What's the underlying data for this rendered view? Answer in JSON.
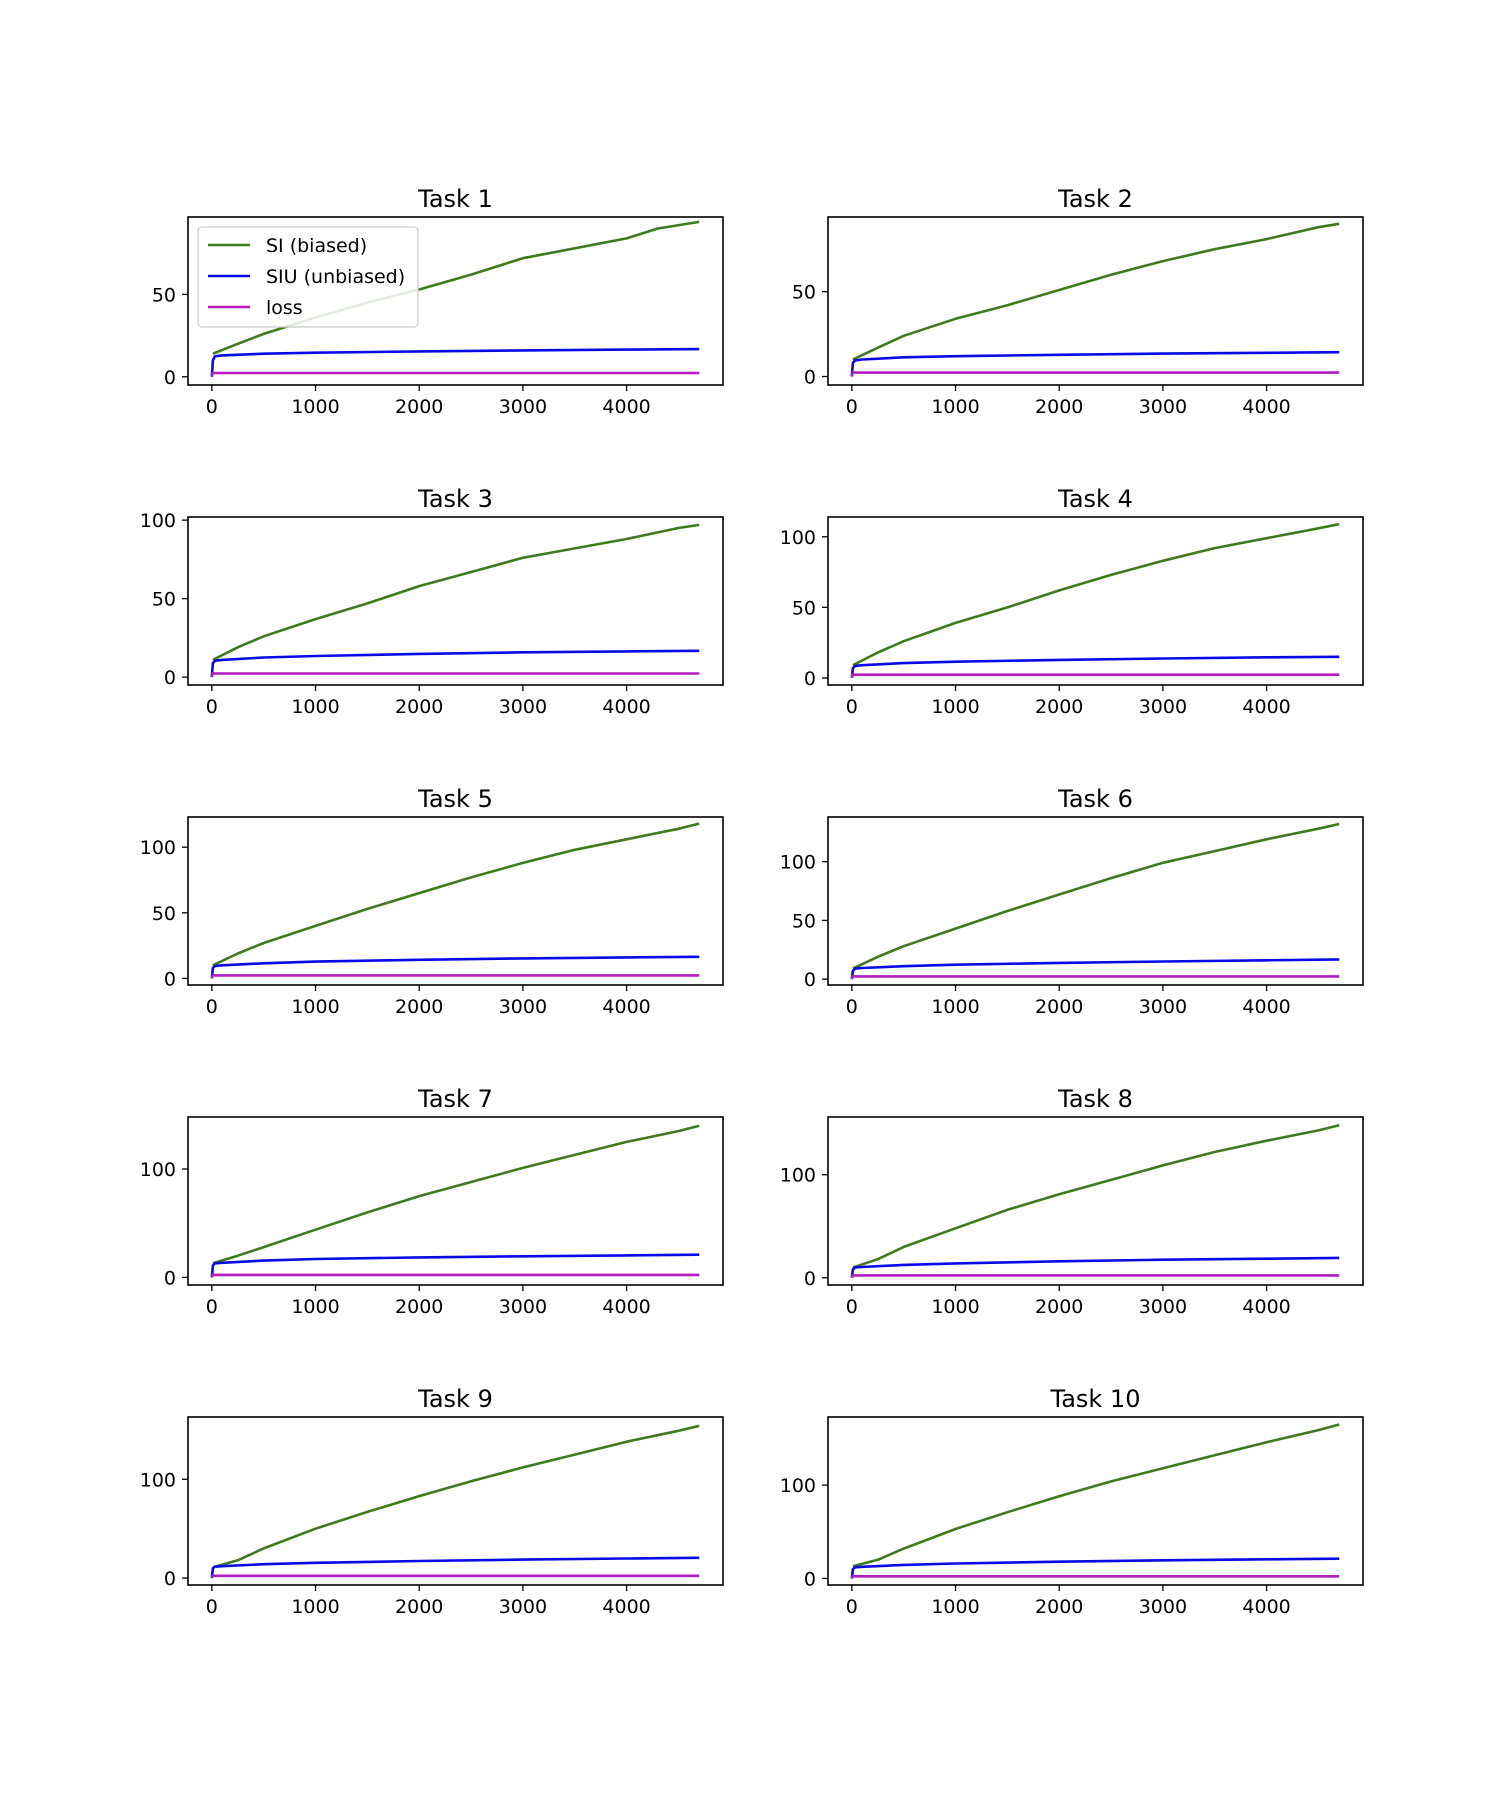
{
  "colors": {
    "si_biased": "#3e7a1e",
    "siu_unbiased": "#0a0ae6",
    "loss": "#b21bbd",
    "axes": "#000000",
    "legend_border": "#cccccc"
  },
  "chart_data": [
    {
      "type": "line",
      "title": "Task 1",
      "xlim": [
        -230,
        4930
      ],
      "ylim": [
        -5,
        97
      ],
      "xticks": [
        0,
        1000,
        2000,
        3000,
        4000
      ],
      "xtick_labels": [
        "0",
        "1000",
        "2000",
        "3000",
        "4000"
      ],
      "yticks": [
        0,
        50
      ],
      "ytick_labels": [
        "0",
        "50"
      ],
      "legend": {
        "position": "upper-left",
        "entries": [
          "SI (biased)",
          "SIU (unbiased)",
          "loss"
        ]
      },
      "series": [
        {
          "name": "SI (biased)",
          "color_key": "si_biased",
          "x": [
            10,
            250,
            500,
            1000,
            1500,
            2000,
            2500,
            3000,
            3500,
            4000,
            4300,
            4700
          ],
          "y": [
            14,
            20,
            26,
            36,
            45,
            53,
            62,
            72,
            78,
            84,
            90,
            94
          ]
        },
        {
          "name": "SIU (unbiased)",
          "color_key": "siu_unbiased",
          "x": [
            0,
            10,
            30,
            100,
            500,
            1000,
            2000,
            3000,
            4000,
            4700
          ],
          "y": [
            0,
            10,
            12.5,
            13,
            14,
            14.6,
            15.4,
            16,
            16.5,
            16.8
          ]
        },
        {
          "name": "loss",
          "color_key": "loss",
          "x": [
            0,
            8,
            30,
            4700
          ],
          "y": [
            0,
            2.5,
            2.3,
            2.3
          ]
        }
      ]
    },
    {
      "type": "line",
      "title": "Task 2",
      "xlim": [
        -230,
        4930
      ],
      "ylim": [
        -5,
        94
      ],
      "xticks": [
        0,
        1000,
        2000,
        3000,
        4000
      ],
      "xtick_labels": [
        "0",
        "1000",
        "2000",
        "3000",
        "4000"
      ],
      "yticks": [
        0,
        50
      ],
      "ytick_labels": [
        "0",
        "50"
      ],
      "series": [
        {
          "name": "SI (biased)",
          "color_key": "si_biased",
          "x": [
            10,
            250,
            500,
            1000,
            1500,
            2000,
            2500,
            3000,
            3500,
            4000,
            4500,
            4700
          ],
          "y": [
            10,
            17,
            24,
            34,
            42,
            51,
            60,
            68,
            75,
            81,
            88,
            90
          ]
        },
        {
          "name": "SIU (unbiased)",
          "color_key": "siu_unbiased",
          "x": [
            0,
            10,
            30,
            100,
            500,
            1000,
            2000,
            3000,
            4000,
            4700
          ],
          "y": [
            0,
            8,
            9.5,
            10,
            11.3,
            12,
            12.8,
            13.5,
            14,
            14.3
          ]
        },
        {
          "name": "loss",
          "color_key": "loss",
          "x": [
            0,
            8,
            30,
            4700
          ],
          "y": [
            0,
            2.5,
            2.3,
            2.3
          ]
        }
      ]
    },
    {
      "type": "line",
      "title": "Task 3",
      "xlim": [
        -230,
        4930
      ],
      "ylim": [
        -5,
        102
      ],
      "xticks": [
        0,
        1000,
        2000,
        3000,
        4000
      ],
      "xtick_labels": [
        "0",
        "1000",
        "2000",
        "3000",
        "4000"
      ],
      "yticks": [
        0,
        50,
        100
      ],
      "ytick_labels": [
        "0",
        "50",
        "100"
      ],
      "series": [
        {
          "name": "SI (biased)",
          "color_key": "si_biased",
          "x": [
            10,
            250,
            500,
            1000,
            1500,
            2000,
            2500,
            3000,
            3500,
            4000,
            4500,
            4700
          ],
          "y": [
            11,
            19,
            26,
            37,
            47,
            58,
            67,
            76,
            82,
            88,
            95,
            97
          ]
        },
        {
          "name": "SIU (unbiased)",
          "color_key": "siu_unbiased",
          "x": [
            0,
            10,
            30,
            100,
            500,
            1000,
            2000,
            3000,
            4000,
            4700
          ],
          "y": [
            0,
            9,
            10.5,
            11,
            12.5,
            13.5,
            14.8,
            15.8,
            16.4,
            16.8
          ]
        },
        {
          "name": "loss",
          "color_key": "loss",
          "x": [
            0,
            8,
            30,
            4700
          ],
          "y": [
            0,
            2.5,
            2.3,
            2.3
          ]
        }
      ]
    },
    {
      "type": "line",
      "title": "Task 4",
      "xlim": [
        -230,
        4930
      ],
      "ylim": [
        -5,
        114
      ],
      "xticks": [
        0,
        1000,
        2000,
        3000,
        4000
      ],
      "xtick_labels": [
        "0",
        "1000",
        "2000",
        "3000",
        "4000"
      ],
      "yticks": [
        0,
        50,
        100
      ],
      "ytick_labels": [
        "0",
        "50",
        "100"
      ],
      "series": [
        {
          "name": "SI (biased)",
          "color_key": "si_biased",
          "x": [
            10,
            250,
            500,
            1000,
            1500,
            2000,
            2500,
            3000,
            3500,
            4000,
            4500,
            4700
          ],
          "y": [
            9,
            18,
            26,
            39,
            50,
            62,
            73,
            83,
            92,
            99,
            106,
            109
          ]
        },
        {
          "name": "SIU (unbiased)",
          "color_key": "siu_unbiased",
          "x": [
            0,
            10,
            30,
            100,
            500,
            1000,
            2000,
            3000,
            4000,
            4700
          ],
          "y": [
            0,
            7,
            8.5,
            9,
            10.5,
            11.5,
            12.8,
            13.8,
            14.6,
            15
          ]
        },
        {
          "name": "loss",
          "color_key": "loss",
          "x": [
            0,
            8,
            30,
            4700
          ],
          "y": [
            0,
            2.5,
            2.3,
            2.3
          ]
        }
      ]
    },
    {
      "type": "line",
      "title": "Task 5",
      "xlim": [
        -230,
        4930
      ],
      "ylim": [
        -5,
        123
      ],
      "xticks": [
        0,
        1000,
        2000,
        3000,
        4000
      ],
      "xtick_labels": [
        "0",
        "1000",
        "2000",
        "3000",
        "4000"
      ],
      "yticks": [
        0,
        50,
        100
      ],
      "ytick_labels": [
        "0",
        "50",
        "100"
      ],
      "series": [
        {
          "name": "SI (biased)",
          "color_key": "si_biased",
          "x": [
            10,
            250,
            500,
            1000,
            1500,
            2000,
            2500,
            3000,
            3500,
            4000,
            4500,
            4700
          ],
          "y": [
            10,
            19,
            27,
            40,
            53,
            65,
            77,
            88,
            98,
            106,
            114,
            118
          ]
        },
        {
          "name": "SIU (unbiased)",
          "color_key": "siu_unbiased",
          "x": [
            0,
            10,
            30,
            100,
            500,
            1000,
            2000,
            3000,
            4000,
            4700
          ],
          "y": [
            0,
            8,
            9.5,
            10,
            11.5,
            12.8,
            14.2,
            15.3,
            16,
            16.5
          ]
        },
        {
          "name": "loss",
          "color_key": "loss",
          "x": [
            0,
            8,
            30,
            4700
          ],
          "y": [
            0,
            2.5,
            2.3,
            2.3
          ]
        }
      ]
    },
    {
      "type": "line",
      "title": "Task 6",
      "xlim": [
        -230,
        4930
      ],
      "ylim": [
        -5,
        138
      ],
      "xticks": [
        0,
        1000,
        2000,
        3000,
        4000
      ],
      "xtick_labels": [
        "0",
        "1000",
        "2000",
        "3000",
        "4000"
      ],
      "yticks": [
        0,
        50,
        100
      ],
      "ytick_labels": [
        "0",
        "50",
        "100"
      ],
      "series": [
        {
          "name": "SI (biased)",
          "color_key": "si_biased",
          "x": [
            10,
            250,
            500,
            1000,
            1500,
            2000,
            2500,
            3000,
            3500,
            4000,
            4500,
            4700
          ],
          "y": [
            9,
            19,
            28,
            43,
            58,
            72,
            86,
            99,
            109,
            119,
            128,
            132
          ]
        },
        {
          "name": "SIU (unbiased)",
          "color_key": "siu_unbiased",
          "x": [
            0,
            10,
            30,
            100,
            500,
            1000,
            2000,
            3000,
            4000,
            4700
          ],
          "y": [
            0,
            7,
            9,
            9.5,
            11,
            12.3,
            13.8,
            15,
            16,
            16.8
          ]
        },
        {
          "name": "loss",
          "color_key": "loss",
          "x": [
            0,
            8,
            30,
            4700
          ],
          "y": [
            0,
            2.5,
            2.3,
            2.3
          ]
        }
      ]
    },
    {
      "type": "line",
      "title": "Task 7",
      "xlim": [
        -230,
        4930
      ],
      "ylim": [
        -7,
        148
      ],
      "xticks": [
        0,
        1000,
        2000,
        3000,
        4000
      ],
      "xtick_labels": [
        "0",
        "1000",
        "2000",
        "3000",
        "4000"
      ],
      "yticks": [
        0,
        100
      ],
      "ytick_labels": [
        "0",
        "100"
      ],
      "series": [
        {
          "name": "SI (biased)",
          "color_key": "si_biased",
          "x": [
            10,
            250,
            500,
            1000,
            1500,
            2000,
            2500,
            3000,
            3500,
            4000,
            4500,
            4700
          ],
          "y": [
            13,
            20,
            28,
            44,
            60,
            75,
            88,
            101,
            113,
            125,
            135,
            140
          ]
        },
        {
          "name": "SIU (unbiased)",
          "color_key": "siu_unbiased",
          "x": [
            0,
            10,
            30,
            100,
            500,
            1000,
            2000,
            3000,
            4000,
            4700
          ],
          "y": [
            0,
            11,
            13,
            13.5,
            15.5,
            17,
            18.5,
            19.5,
            20.3,
            21
          ]
        },
        {
          "name": "loss",
          "color_key": "loss",
          "x": [
            0,
            8,
            30,
            4700
          ],
          "y": [
            0,
            2.5,
            2.3,
            2.3
          ]
        }
      ]
    },
    {
      "type": "line",
      "title": "Task 8",
      "xlim": [
        -230,
        4930
      ],
      "ylim": [
        -7,
        156
      ],
      "xticks": [
        0,
        1000,
        2000,
        3000,
        4000
      ],
      "xtick_labels": [
        "0",
        "1000",
        "2000",
        "3000",
        "4000"
      ],
      "yticks": [
        0,
        100
      ],
      "ytick_labels": [
        "0",
        "100"
      ],
      "series": [
        {
          "name": "SI (biased)",
          "color_key": "si_biased",
          "x": [
            10,
            250,
            500,
            1000,
            1500,
            2000,
            2500,
            3000,
            3500,
            4000,
            4500,
            4700
          ],
          "y": [
            10,
            18,
            30,
            48,
            66,
            81,
            95,
            109,
            122,
            133,
            143,
            148
          ]
        },
        {
          "name": "SIU (unbiased)",
          "color_key": "siu_unbiased",
          "x": [
            0,
            10,
            30,
            100,
            500,
            1000,
            2000,
            3000,
            4000,
            4700
          ],
          "y": [
            0,
            8,
            10,
            10.5,
            12.5,
            14,
            16,
            17.5,
            18.5,
            19.3
          ]
        },
        {
          "name": "loss",
          "color_key": "loss",
          "x": [
            0,
            8,
            30,
            4700
          ],
          "y": [
            0,
            2.5,
            2.3,
            2.3
          ]
        }
      ]
    },
    {
      "type": "line",
      "title": "Task 9",
      "xlim": [
        -230,
        4930
      ],
      "ylim": [
        -7,
        163
      ],
      "xticks": [
        0,
        1000,
        2000,
        3000,
        4000
      ],
      "xtick_labels": [
        "0",
        "1000",
        "2000",
        "3000",
        "4000"
      ],
      "yticks": [
        0,
        100
      ],
      "ytick_labels": [
        "0",
        "100"
      ],
      "series": [
        {
          "name": "SI (biased)",
          "color_key": "si_biased",
          "x": [
            10,
            250,
            500,
            1000,
            1500,
            2000,
            2500,
            3000,
            3500,
            4000,
            4500,
            4700
          ],
          "y": [
            11,
            18,
            30,
            50,
            67,
            83,
            98,
            112,
            125,
            138,
            149,
            154
          ]
        },
        {
          "name": "SIU (unbiased)",
          "color_key": "siu_unbiased",
          "x": [
            0,
            10,
            30,
            100,
            500,
            1000,
            2000,
            3000,
            4000,
            4700
          ],
          "y": [
            0,
            10,
            11.5,
            12,
            14,
            15.5,
            17.3,
            18.7,
            19.8,
            20.5
          ]
        },
        {
          "name": "loss",
          "color_key": "loss",
          "x": [
            0,
            8,
            30,
            4700
          ],
          "y": [
            0,
            2.5,
            2.3,
            2.3
          ]
        }
      ]
    },
    {
      "type": "line",
      "title": "Task 10",
      "xlim": [
        -230,
        4930
      ],
      "ylim": [
        -7,
        173
      ],
      "xticks": [
        0,
        1000,
        2000,
        3000,
        4000
      ],
      "xtick_labels": [
        "0",
        "1000",
        "2000",
        "3000",
        "4000"
      ],
      "yticks": [
        0,
        100
      ],
      "ytick_labels": [
        "0",
        "100"
      ],
      "series": [
        {
          "name": "SI (biased)",
          "color_key": "si_biased",
          "x": [
            10,
            250,
            500,
            1000,
            1500,
            2000,
            2500,
            3000,
            3500,
            4000,
            4500,
            4700
          ],
          "y": [
            13,
            20,
            32,
            53,
            71,
            88,
            104,
            118,
            132,
            146,
            159,
            165
          ]
        },
        {
          "name": "SIU (unbiased)",
          "color_key": "siu_unbiased",
          "x": [
            0,
            10,
            30,
            100,
            500,
            1000,
            2000,
            3000,
            4000,
            4700
          ],
          "y": [
            0,
            10,
            12,
            12.5,
            14.5,
            16,
            18,
            19.5,
            20.5,
            21.2
          ]
        },
        {
          "name": "loss",
          "color_key": "loss",
          "x": [
            0,
            8,
            30,
            4700
          ],
          "y": [
            0,
            2.5,
            2.3,
            2.3
          ]
        }
      ]
    }
  ]
}
